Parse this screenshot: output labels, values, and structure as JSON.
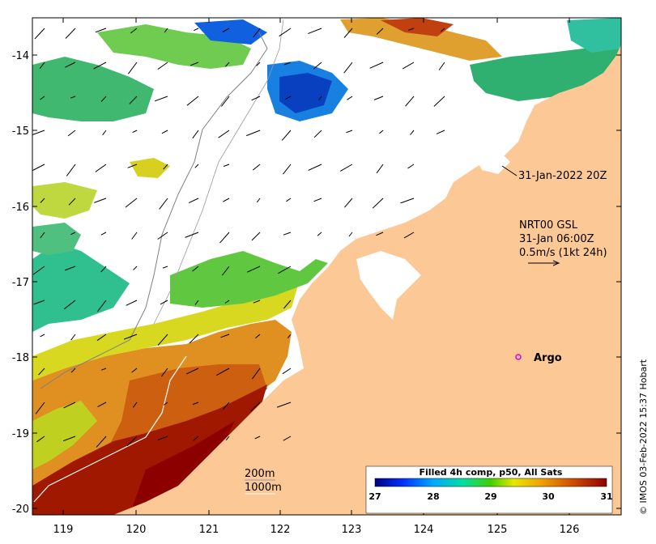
{
  "map": {
    "lon_ticks": [
      "119",
      "120",
      "121",
      "122",
      "123",
      "124",
      "125",
      "126"
    ],
    "lat_ticks": [
      "-14",
      "-15",
      "-16",
      "-17",
      "-18",
      "-19",
      "-20"
    ],
    "annotations": {
      "timestamp": "31-Jan-2022 20Z",
      "current_source": "NRT00 GSL",
      "current_time": "31-Jan 06:00Z",
      "scale_label": "0.5m/s (1kt 24h)",
      "argo_label": "Argo",
      "isobath_200": "200m",
      "isobath_1000": "1000m"
    },
    "colorbar": {
      "title": "Filled 4h comp, p50, All Sats",
      "ticks": [
        "27",
        "28",
        "29",
        "30",
        "31"
      ]
    },
    "credit": "© IMOS 03-Feb-2022 15:37 Hobart",
    "colors": {
      "land": "#fcc896",
      "argo_marker": "#e000e0"
    }
  }
}
